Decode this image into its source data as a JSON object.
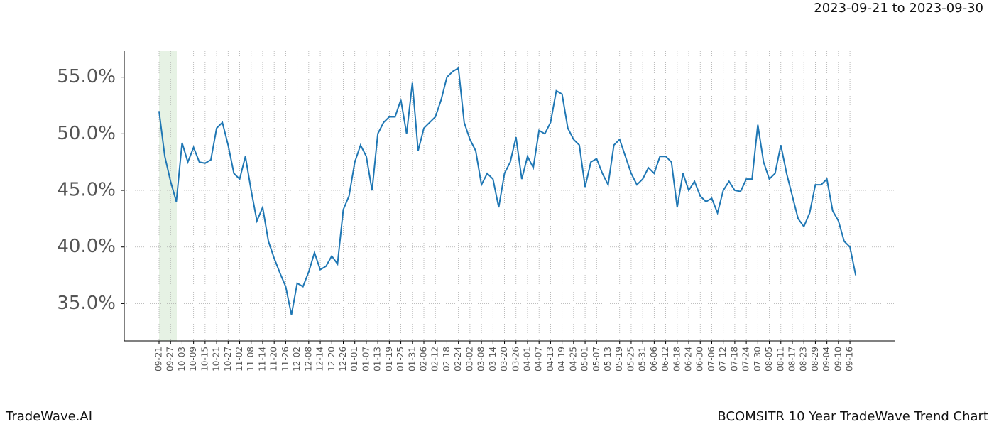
{
  "chart_data": {
    "type": "line",
    "title": "2023-09-21 to 2023-09-30",
    "footer_left": "TradeWave.AI",
    "footer_right": "BCOMSITR 10 Year TradeWave Trend Chart",
    "categories": [
      "09-21",
      null,
      "09-27",
      null,
      "10-03",
      null,
      "10-09",
      null,
      "10-15",
      null,
      "10-21",
      null,
      "10-27",
      null,
      "11-02",
      null,
      "11-08",
      null,
      "11-14",
      null,
      "11-20",
      null,
      "11-26",
      null,
      "12-02",
      null,
      "12-08",
      null,
      "12-14",
      null,
      "12-20",
      null,
      "12-26",
      null,
      "01-01",
      null,
      "01-07",
      null,
      "01-13",
      null,
      "01-19",
      null,
      "01-25",
      null,
      "01-31",
      null,
      "02-06",
      null,
      "02-12",
      null,
      "02-18",
      null,
      "02-24",
      null,
      "03-02",
      null,
      "03-08",
      null,
      "03-14",
      null,
      "03-20",
      null,
      "03-26",
      null,
      "04-01",
      null,
      "04-07",
      null,
      "04-13",
      null,
      "04-19",
      null,
      "04-25",
      null,
      "05-01",
      null,
      "05-07",
      null,
      "05-13",
      null,
      "05-19",
      null,
      "05-25",
      null,
      "05-31",
      null,
      "06-06",
      null,
      "06-12",
      null,
      "06-18",
      null,
      "06-24",
      null,
      "06-30",
      null,
      "07-06",
      null,
      "07-12",
      null,
      "07-18",
      null,
      "07-24",
      null,
      "07-30",
      null,
      "08-05",
      null,
      "08-11",
      null,
      "08-17",
      null,
      "08-23",
      null,
      "08-29",
      null,
      "09-04",
      null,
      "09-10",
      null,
      "09-16",
      null
    ],
    "series": [
      {
        "name": "BCOMSITR",
        "color": "#1f77b4",
        "values": [
          52.0,
          48.0,
          45.8,
          44.0,
          49.2,
          47.5,
          48.8,
          47.5,
          47.4,
          47.7,
          50.5,
          51.0,
          49.0,
          46.5,
          46.0,
          48.0,
          45.0,
          42.3,
          43.5,
          40.5,
          39.0,
          37.7,
          36.5,
          34.0,
          36.8,
          36.5,
          37.8,
          39.5,
          38.0,
          38.3,
          39.2,
          38.5,
          43.3,
          44.5,
          47.5,
          49.0,
          48.0,
          45.0,
          50.0,
          51.0,
          51.5,
          51.5,
          53.0,
          50.0,
          54.5,
          48.5,
          50.5,
          51.0,
          51.5,
          53.0,
          55.0,
          55.5,
          55.8,
          51.0,
          49.5,
          48.5,
          45.5,
          46.5,
          46.0,
          43.5,
          46.5,
          47.5,
          49.7,
          46.0,
          48.0,
          47.0,
          50.3,
          50.0,
          51.0,
          53.8,
          53.5,
          50.5,
          49.5,
          49.0,
          45.3,
          47.5,
          47.8,
          46.5,
          45.5,
          49.0,
          49.5,
          48.0,
          46.5,
          45.5,
          46.0,
          47.0,
          46.5,
          48.0,
          48.0,
          47.5,
          43.5,
          46.5,
          45.0,
          45.8,
          44.5,
          44.0,
          44.3,
          43.0,
          45.0,
          45.8,
          45.0,
          44.9,
          46.0,
          46.0,
          50.8,
          47.5,
          46.0,
          46.5,
          49.0,
          46.5,
          44.5,
          42.5,
          41.8,
          43.0,
          45.5,
          45.5,
          46.0,
          43.2,
          42.3,
          40.5,
          40.0,
          37.5
        ]
      }
    ],
    "ylim": [
      31.7,
      57.3
    ],
    "yticks": [
      {
        "value": 35,
        "label": "35.0%"
      },
      {
        "value": 40,
        "label": "40.0%"
      },
      {
        "value": 45,
        "label": "45.0%"
      },
      {
        "value": 50,
        "label": "50.0%"
      },
      {
        "value": 55,
        "label": "55.0%"
      }
    ],
    "grid": true
  }
}
